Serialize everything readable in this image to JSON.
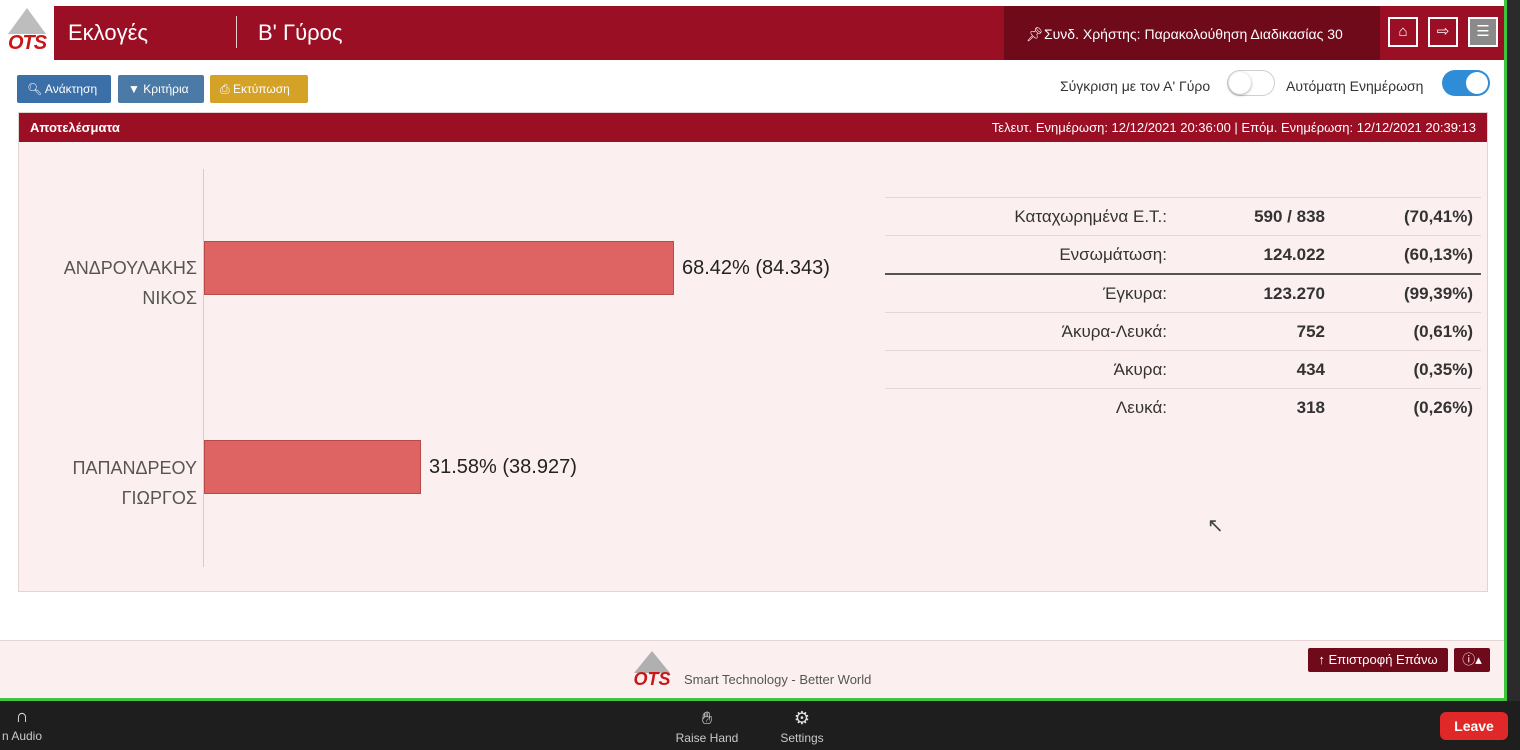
{
  "header": {
    "logo_text": "OTS",
    "app_title": "Εκλογές",
    "round_title": "Β' Γύρος",
    "user_pin_icon": "pin-icon",
    "user_label": "Συνδ. Χρήστης: Παρακολούθηση Διαδικασίας 30",
    "buttons": {
      "home_icon": "home-icon",
      "exit_icon": "sign-out-icon",
      "menu_icon": "hamburger-menu-icon"
    }
  },
  "toolbar": {
    "search_label": "Ανάκτηση",
    "criteria_label": "Κριτήρια",
    "print_label": "Εκτύπωση",
    "compare_label": "Σύγκριση με τον Α' Γύρο",
    "compare_on": false,
    "autoupdate_label": "Αυτόματη Ενημέρωση",
    "autoupdate_on": true
  },
  "panel": {
    "title": "Αποτελέσματα",
    "last_update": "Τελευτ. Ενημέρωση: 12/12/2021 20:36:00  |  Επόμ. Ενημέρωση: 12/12/2021 20:39:13"
  },
  "chart_data": {
    "type": "bar",
    "orientation": "horizontal",
    "categories": [
      [
        "ΑΝΔΡΟΥΛΑΚΗΣ",
        "ΝΙΚΟΣ"
      ],
      [
        "ΠΑΠΑΝΔΡΕΟΥ",
        "ΓΙΩΡΓΟΣ"
      ]
    ],
    "values": [
      68.42,
      31.58
    ],
    "data_labels": [
      "68.42% (84.343)",
      "31.58% (38.927)"
    ],
    "xlim": [
      0,
      100
    ],
    "color": "#de6464"
  },
  "stats": [
    {
      "label": "Καταχωρημένα Ε.Τ.:",
      "value": "590 / 838",
      "pct": "(70,41%)"
    },
    {
      "label": "Ενσωμάτωση:",
      "value": "124.022",
      "pct": "(60,13%)"
    },
    {
      "label": "Έγκυρα:",
      "value": "123.270",
      "pct": "(99,39%)"
    },
    {
      "label": "Άκυρα-Λευκά:",
      "value": "752",
      "pct": "(0,61%)"
    },
    {
      "label": "Άκυρα:",
      "value": "434",
      "pct": "(0,35%)"
    },
    {
      "label": "Λευκά:",
      "value": "318",
      "pct": "(0,26%)"
    }
  ],
  "footer": {
    "logo_text": "OTS",
    "slogan": "Smart Technology - Better World",
    "back_top_label": "Επιστροφή Επάνω",
    "info_icon": "info-icon"
  },
  "zoom_bar": {
    "audio_label": "n Audio",
    "raise_hand_label": "Raise Hand",
    "settings_label": "Settings",
    "leave_label": "Leave"
  }
}
